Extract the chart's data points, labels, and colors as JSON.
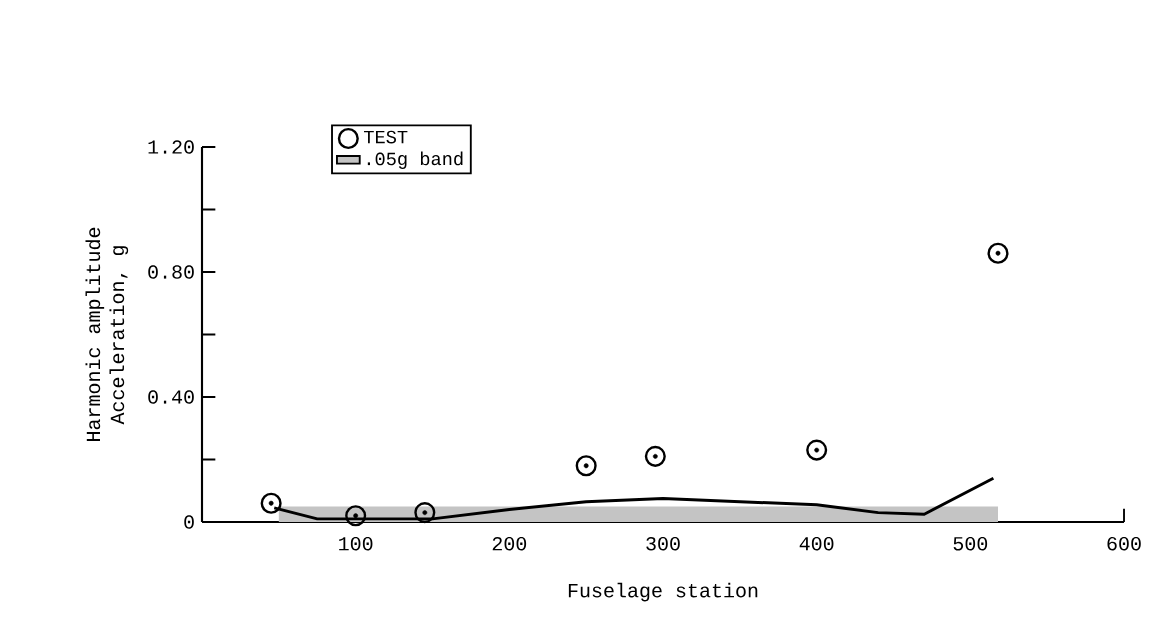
{
  "chart_data": {
    "type": "scatter",
    "xlabel": "Fuselage station",
    "ylabel": "Harmonic amplitude Acceleration, g",
    "xlim": [
      0,
      600
    ],
    "ylim": [
      0,
      1.2
    ],
    "xticks": [
      100,
      200,
      300,
      400,
      500,
      600
    ],
    "yticks": [
      {
        "value": 0,
        "label": "0"
      },
      {
        "value": 0.2,
        "label": null
      },
      {
        "value": 0.4,
        "label": "0.40"
      },
      {
        "value": 0.6,
        "label": null
      },
      {
        "value": 0.8,
        "label": "0.80"
      },
      {
        "value": 1.0,
        "label": null
      },
      {
        "value": 1.2,
        "label": "1.20"
      }
    ],
    "legend": "top left",
    "series": [
      {
        "name": ".05g band",
        "type": "area",
        "color": "#c4c4c4",
        "x": [
          50,
          518
        ],
        "values": [
          0.05,
          0.05
        ]
      },
      {
        "type": "line",
        "color": "#000000",
        "marker": "none",
        "line_style": "solid",
        "x": [
          47,
          75,
          100,
          150,
          200,
          250,
          300,
          400,
          440,
          470,
          515
        ],
        "values": [
          0.045,
          0.01,
          0.01,
          0.01,
          0.04,
          0.065,
          0.075,
          0.055,
          0.03,
          0.025,
          0.14
        ]
      },
      {
        "name": "TEST",
        "color": "#000000",
        "marker": "circle",
        "x": [
          45,
          100,
          145,
          250,
          295,
          400,
          518
        ],
        "values": [
          0.06,
          0.02,
          0.03,
          0.18,
          0.21,
          0.23,
          0.86
        ]
      }
    ]
  }
}
